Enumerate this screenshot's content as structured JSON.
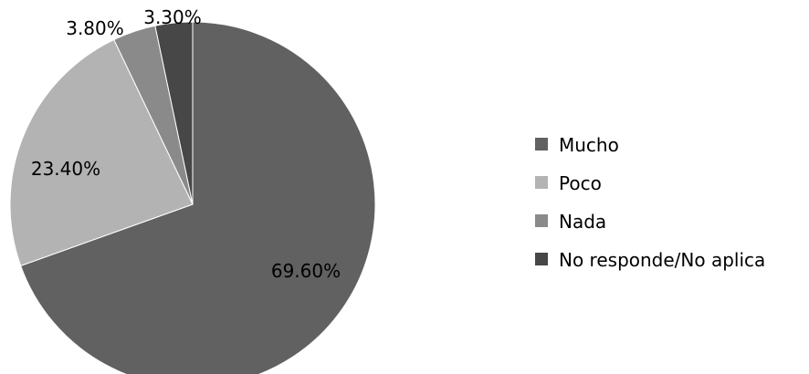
{
  "chart_data": {
    "type": "pie",
    "categories": [
      "Mucho",
      "Poco",
      "Nada",
      "No responde/No aplica"
    ],
    "values": [
      69.6,
      23.4,
      3.8,
      3.3
    ],
    "value_labels": [
      "69.60%",
      "23.40%",
      "3.80%",
      "3.30%"
    ],
    "colors": [
      "#616161",
      "#b3b3b3",
      "#8a8a8a",
      "#474747"
    ],
    "start": "12 o'clock",
    "direction": "clockwise",
    "legend_position": "right",
    "title": ""
  }
}
